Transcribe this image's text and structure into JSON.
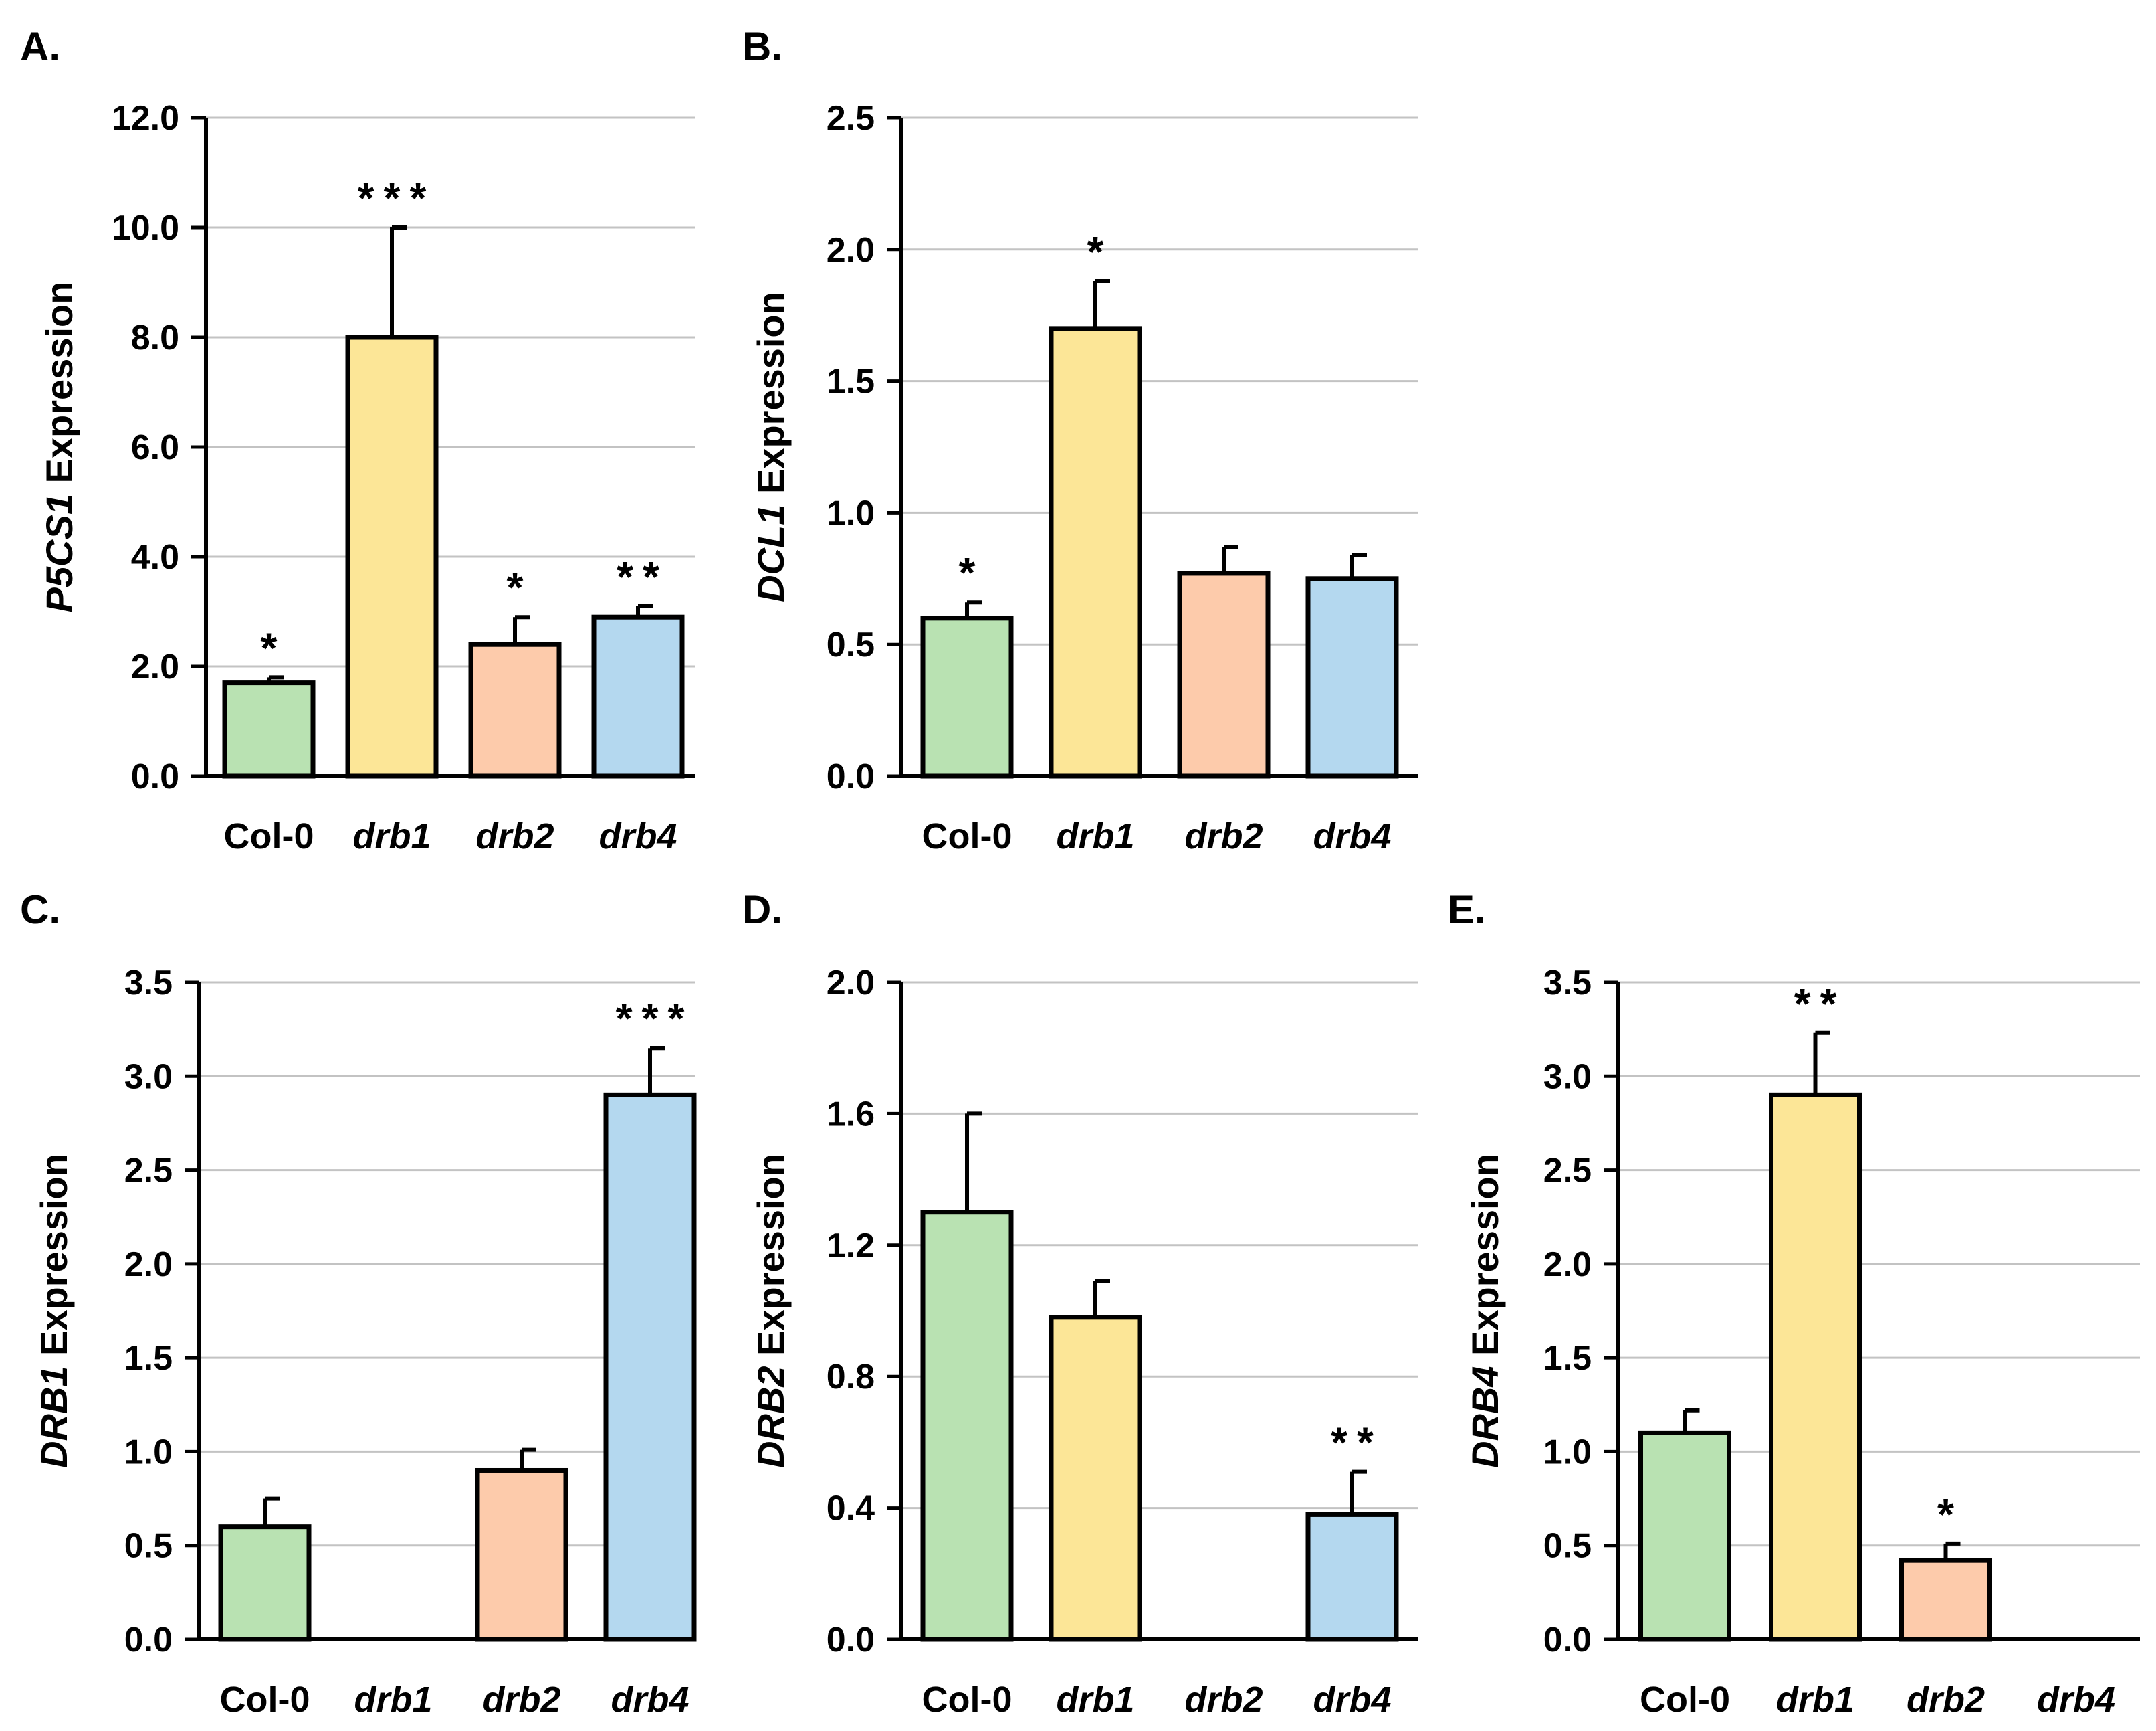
{
  "chart_data": [
    {
      "panel": "A.",
      "type": "bar",
      "gene": "P5CS1",
      "ylabel_suffix": " Expression",
      "categories": [
        {
          "label": "Col-0",
          "italic": false
        },
        {
          "label": "drb1",
          "italic": true
        },
        {
          "label": "drb2",
          "italic": true
        },
        {
          "label": "drb4",
          "italic": true
        }
      ],
      "values": [
        1.7,
        8.0,
        2.4,
        2.9
      ],
      "errors": [
        0.1,
        2.0,
        0.5,
        0.2
      ],
      "significance": [
        "*",
        "***",
        "*",
        "**"
      ],
      "ylim": [
        0,
        12
      ],
      "yticks": [
        "0.0",
        "2.0",
        "4.0",
        "6.0",
        "8.0",
        "10.0",
        "12.0"
      ],
      "grid": true
    },
    {
      "panel": "B.",
      "type": "bar",
      "gene": "DCL1",
      "ylabel_suffix": " Expression",
      "categories": [
        {
          "label": "Col-0",
          "italic": false
        },
        {
          "label": "drb1",
          "italic": true
        },
        {
          "label": "drb2",
          "italic": true
        },
        {
          "label": "drb4",
          "italic": true
        }
      ],
      "values": [
        0.6,
        1.7,
        0.77,
        0.75
      ],
      "errors": [
        0.06,
        0.18,
        0.1,
        0.09
      ],
      "significance": [
        "*",
        "*",
        "",
        ""
      ],
      "ylim": [
        0,
        2.5
      ],
      "yticks": [
        "0.0",
        "0.5",
        "1.0",
        "1.5",
        "2.0",
        "2.5"
      ],
      "grid": true
    },
    {
      "panel": "C.",
      "type": "bar",
      "gene": "DRB1",
      "ylabel_suffix": " Expression",
      "categories": [
        {
          "label": "Col-0",
          "italic": false
        },
        {
          "label": "drb1",
          "italic": true
        },
        {
          "label": "drb2",
          "italic": true
        },
        {
          "label": "drb4",
          "italic": true
        }
      ],
      "values": [
        0.6,
        0,
        0.9,
        2.9
      ],
      "errors": [
        0.15,
        0,
        0.11,
        0.25
      ],
      "significance": [
        "",
        "",
        "",
        "***"
      ],
      "ylim": [
        0,
        3.5
      ],
      "yticks": [
        "0.0",
        "0.5",
        "1.0",
        "1.5",
        "2.0",
        "2.5",
        "3.0",
        "3.5"
      ],
      "grid": true
    },
    {
      "panel": "D.",
      "type": "bar",
      "gene": "DRB2",
      "ylabel_suffix": " Expression",
      "categories": [
        {
          "label": "Col-0",
          "italic": false
        },
        {
          "label": "drb1",
          "italic": true
        },
        {
          "label": "drb2",
          "italic": true
        },
        {
          "label": "drb4",
          "italic": true
        }
      ],
      "values": [
        1.3,
        0.98,
        0,
        0.38
      ],
      "errors": [
        0.3,
        0.11,
        0,
        0.13
      ],
      "significance": [
        "",
        "",
        "",
        "**"
      ],
      "ylim": [
        0,
        2.0
      ],
      "yticks": [
        "0.0",
        "0.4",
        "0.8",
        "1.2",
        "1.6",
        "2.0"
      ],
      "grid": true
    },
    {
      "panel": "E.",
      "type": "bar",
      "gene": "DRB4",
      "ylabel_suffix": " Expression",
      "categories": [
        {
          "label": "Col-0",
          "italic": false
        },
        {
          "label": "drb1",
          "italic": true
        },
        {
          "label": "drb2",
          "italic": true
        },
        {
          "label": "drb4",
          "italic": true
        }
      ],
      "values": [
        1.1,
        2.9,
        0.42,
        0
      ],
      "errors": [
        0.12,
        0.33,
        0.09,
        0
      ],
      "significance": [
        "",
        "**",
        "*",
        ""
      ],
      "ylim": [
        0,
        3.5
      ],
      "yticks": [
        "0.0",
        "0.5",
        "1.0",
        "1.5",
        "2.0",
        "2.5",
        "3.0",
        "3.5"
      ],
      "grid": true
    }
  ],
  "colors": {
    "Col-0": "#b9e2b2",
    "drb1": "#fce697",
    "drb2": "#fdcbab",
    "drb4": "#b4d8ef"
  }
}
